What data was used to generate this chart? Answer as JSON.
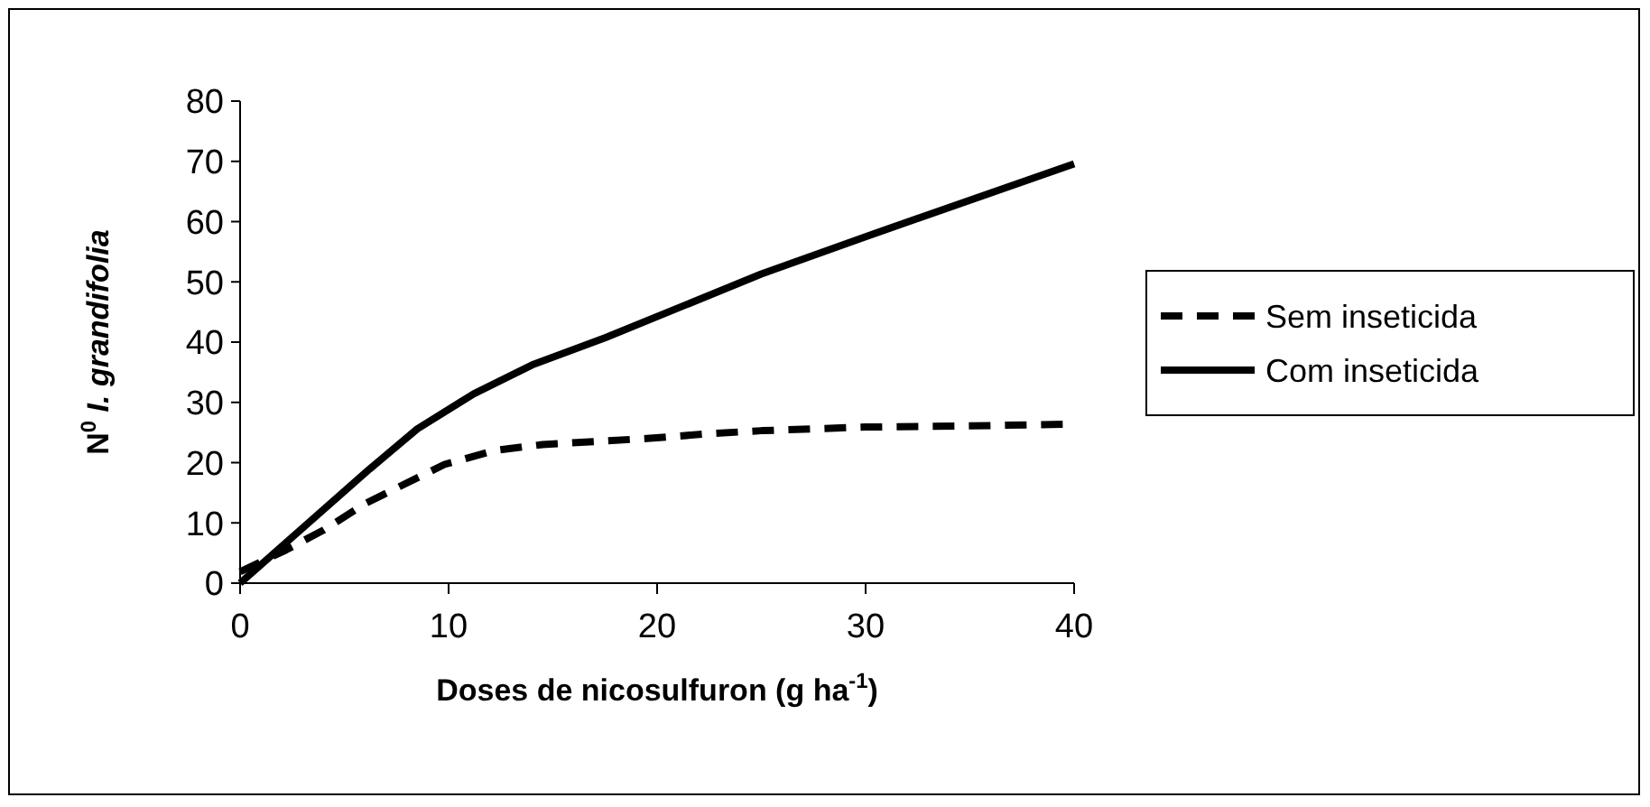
{
  "chart_data": {
    "type": "line",
    "xlabel": "Doses de nicosulfuron (g ha$^{-1}$)",
    "ylabel": "N$^{0}$ I. grandifolia",
    "xlim": [
      0,
      40
    ],
    "xticks": [
      0,
      10,
      20,
      30,
      40
    ],
    "ylim": [
      0,
      80
    ],
    "yticks": [
      0,
      10,
      20,
      30,
      40,
      50,
      60,
      70,
      80
    ],
    "grid": false,
    "legend": "right",
    "marker": "none",
    "series": [
      {
        "name": "Sem inseticida",
        "color": "#000000",
        "line_style": "dashed",
        "x": [
          0,
          2.2,
          4,
          6,
          9.8,
          12.2,
          14.5,
          17,
          19.5,
          22.5,
          25,
          30,
          35,
          40
        ],
        "values": [
          1.9,
          5.5,
          8.8,
          13.2,
          19.7,
          22,
          23,
          23.5,
          24,
          24.8,
          25.3,
          25.9,
          26.1,
          26.4
        ]
      },
      {
        "name": "Com inseticida",
        "color": "#000000",
        "line_style": "solid",
        "x": [
          0,
          6.2,
          8.5,
          11.2,
          14,
          17.5,
          25,
          30,
          40
        ],
        "values": [
          0,
          18.9,
          25.6,
          31.4,
          36.2,
          40.7,
          51.3,
          57.5,
          69.6
        ]
      }
    ]
  }
}
